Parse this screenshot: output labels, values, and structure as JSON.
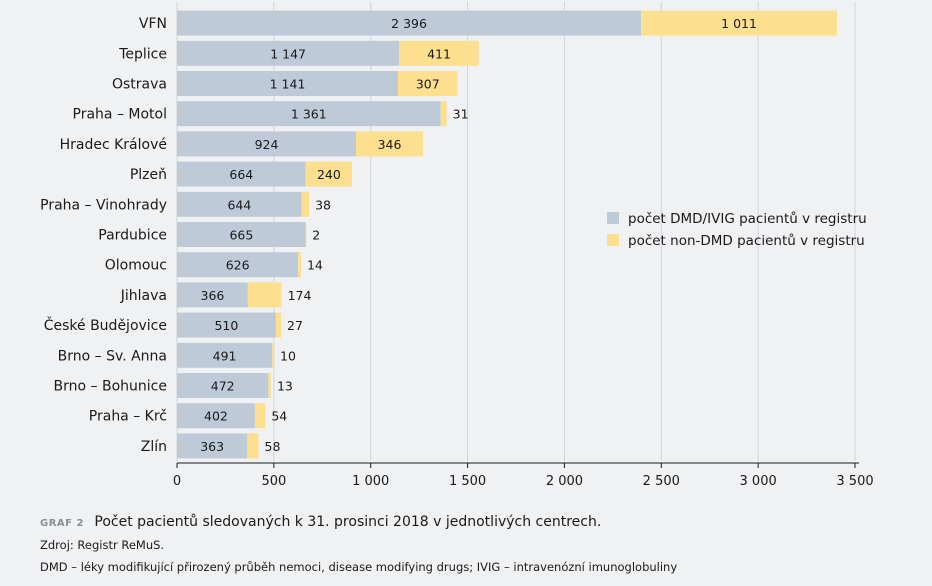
{
  "chart_data": {
    "type": "bar",
    "orientation": "horizontal",
    "stacked": true,
    "categories": [
      "VFN",
      "Teplice",
      "Ostrava",
      "Praha – Motol",
      "Hradec Králové",
      "Plzeň",
      "Praha – Vinohrady",
      "Pardubice",
      "Olomouc",
      "Jihlava",
      "České Budějovice",
      "Brno – Sv. Anna",
      "Brno – Bohunice",
      "Praha – Krč",
      "Zlín"
    ],
    "series": [
      {
        "name": "počet DMD/IVIG pacientů v registru",
        "color": "#bfcad9",
        "values": [
          2396,
          1147,
          1141,
          1361,
          924,
          664,
          644,
          665,
          626,
          366,
          510,
          491,
          472,
          402,
          363
        ]
      },
      {
        "name": "počet non-DMD pacientů v registru",
        "color": "#fde08f",
        "values": [
          1011,
          411,
          307,
          31,
          346,
          240,
          38,
          2,
          14,
          174,
          27,
          10,
          13,
          54,
          58
        ]
      }
    ],
    "value_labels": {
      "dmd": [
        "2 396",
        "1 147",
        "1 141",
        "1 361",
        "924",
        "664",
        "644",
        "665",
        "626",
        "366",
        "510",
        "491",
        "472",
        "402",
        "363"
      ],
      "non_dmd": [
        "1 011",
        "411",
        "307",
        "31",
        "346",
        "240",
        "38",
        "2",
        "14",
        "174",
        "27",
        "10",
        "13",
        "54",
        "58"
      ]
    },
    "xlim": [
      0,
      3500
    ],
    "xticks": [
      0,
      500,
      1000,
      1500,
      2000,
      2500,
      3000,
      3500
    ],
    "xtick_labels": [
      "0",
      "500",
      "1 000",
      "1 500",
      "2 000",
      "2 500",
      "3 000",
      "3 500"
    ],
    "grid": "vertical",
    "legend_position": "right"
  },
  "caption": {
    "tag": "GRAF 2",
    "title": "Počet pacientů sledovaných k 31. prosinci 2018 v jednotlivých centrech."
  },
  "source": "Zdroj: Registr ReMuS.",
  "note": "DMD – léky modifikující přirozený průběh nemoci, disease modifying drugs; IVIG – intravenózní imunoglobuliny"
}
